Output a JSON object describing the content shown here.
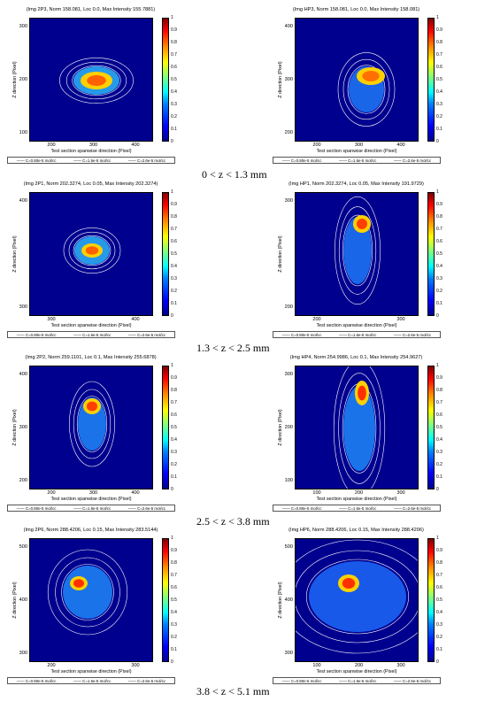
{
  "panels": [
    {
      "id": "p1",
      "title": "(Img 2P3, Norm 158.081, Loc 0.0, Max Intensity 155.7881)",
      "yticks": [
        "300",
        "200",
        "100"
      ],
      "xticks": [
        "200",
        "300",
        "400"
      ]
    },
    {
      "id": "p2",
      "title": "(Img HP3, Norm 158.081, Loc 0.0, Max Intensity 158.081)",
      "yticks": [
        "400",
        "300",
        "200"
      ],
      "xticks": [
        "200",
        "300",
        "400"
      ]
    },
    {
      "id": "p3",
      "title": "(Img 2P1, Norm 202.3274, Loc 0.05, Max Intensity 202.3274)",
      "yticks": [
        "400",
        "300"
      ],
      "xticks": [
        "300",
        "400"
      ]
    },
    {
      "id": "p4",
      "title": "(Img HP1, Norm 202.3274, Loc 0.05, Max Intensity 191.9729)",
      "yticks": [
        "300",
        "200"
      ],
      "xticks": [
        "200",
        "300"
      ]
    },
    {
      "id": "p5",
      "title": "(Img 2P2, Norm 259.1101, Loc 0.1, Max Intensity 255.6878)",
      "yticks": [
        "400",
        "300",
        "200"
      ],
      "xticks": [
        "200",
        "300",
        "400"
      ]
    },
    {
      "id": "p6",
      "title": "(Img HP4, Norm 254.9986, Loc 0.1, Max Intensity 254.9627)",
      "yticks": [
        "300",
        "200",
        "100"
      ],
      "xticks": [
        "100",
        "200",
        "300"
      ]
    },
    {
      "id": "p7",
      "title": "(Img 2P6, Norm 288.4206, Loc 0.15, Max Intensity 283.5144)",
      "yticks": [
        "500",
        "400",
        "300"
      ],
      "xticks": [
        "200",
        "300"
      ]
    },
    {
      "id": "p8",
      "title": "(Img HP6, Norm 288.4206, Loc 0.15, Max Intensity 288.4206)",
      "yticks": [
        "500",
        "400",
        "300"
      ],
      "xticks": [
        "100",
        "200",
        "300"
      ]
    }
  ],
  "ylabel": "Z direction (Pixel)",
  "xlabel": "Test section spanwise direction (Pixel)",
  "legend": [
    "C=0.80e-5 mol/cc",
    "C=1.6e-5 mol/cc",
    "C=2.6e-5 mol/cc"
  ],
  "colorbar_ticks": [
    "1",
    "0.9",
    "0.8",
    "0.7",
    "0.6",
    "0.5",
    "0.4",
    "0.3",
    "0.2",
    "0.1",
    "0"
  ],
  "captions": [
    "0 < z < 1.3 mm",
    "1.3 < z < 2.5 mm",
    "2.5 < z < 3.8 mm",
    "3.8 < z < 5.1 mm"
  ],
  "colors": {
    "background": "#00008f",
    "contour": "#ffffff"
  }
}
